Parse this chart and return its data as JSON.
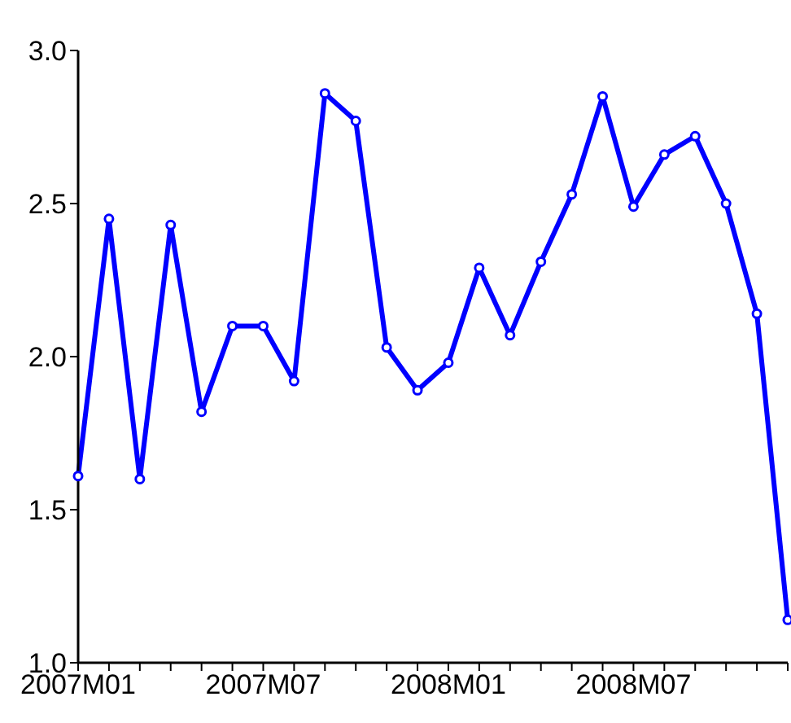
{
  "chart_data": {
    "type": "line",
    "categories": [
      "2007M01",
      null,
      null,
      null,
      null,
      null,
      "2007M07",
      null,
      null,
      null,
      null,
      null,
      "2008M01",
      null,
      null,
      null,
      null,
      null,
      "2008M07",
      null,
      null,
      null,
      null,
      null
    ],
    "series": [
      {
        "color": "#0000ff",
        "values": [
          1.61,
          2.45,
          1.6,
          2.43,
          1.82,
          2.1,
          2.1,
          1.92,
          2.86,
          2.77,
          2.03,
          1.89,
          1.98,
          2.29,
          2.07,
          2.31,
          2.53,
          2.85,
          2.49,
          2.66,
          2.72,
          2.5,
          2.14,
          1.14
        ]
      }
    ],
    "ylim": [
      1.0,
      3.0
    ],
    "yticks": [
      {
        "value": 1.0,
        "label": "1.0"
      },
      {
        "value": 1.5,
        "label": "1.5"
      },
      {
        "value": 2.0,
        "label": "2.0"
      },
      {
        "value": 2.5,
        "label": "2.5"
      },
      {
        "value": 3.0,
        "label": "3.0"
      }
    ],
    "grid": false,
    "legend": false,
    "marker": "circle",
    "line_style": "solid"
  }
}
